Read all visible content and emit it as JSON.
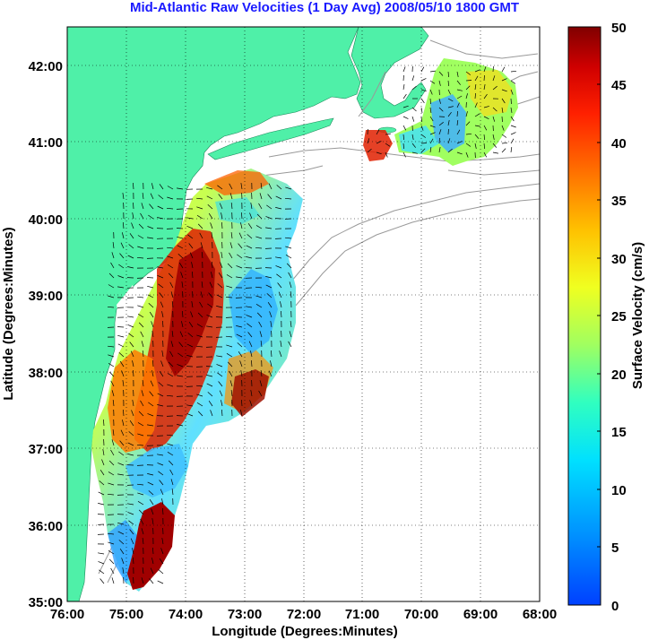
{
  "title": "Mid-Atlantic Raw Velocities (1 Day Avg) 2008/05/10 1800 GMT",
  "x_axis": {
    "label": "Longitude (Degrees:Minutes)",
    "ticks": [
      "76:00",
      "75:00",
      "74:00",
      "73:00",
      "72:00",
      "71:00",
      "70:00",
      "69:00",
      "68:00"
    ]
  },
  "y_axis": {
    "label": "Latitude (Degrees:Minutes)",
    "ticks": [
      "42:00",
      "41:00",
      "40:00",
      "39:00",
      "38:00",
      "37:00",
      "36:00",
      "35:00"
    ]
  },
  "colorbar": {
    "label": "Surface Velocity (cm/s)",
    "ticks": [
      "50",
      "45",
      "40",
      "35",
      "30",
      "25",
      "20",
      "15",
      "10",
      "5",
      "0"
    ],
    "range": [
      0,
      50
    ],
    "colormap": "jet"
  },
  "colors": {
    "land": "#4ff0a8",
    "title": "#1a1aff",
    "bathymetry": "#999999",
    "grid": "#000000"
  },
  "chart_data": {
    "type": "heatmap",
    "title": "Mid-Atlantic Raw Velocities (1 Day Avg) 2008/05/10 1800 GMT",
    "xlabel": "Longitude (Degrees:Minutes)",
    "ylabel": "Latitude (Degrees:Minutes)",
    "xlim": [
      -76,
      -68
    ],
    "ylim": [
      35,
      42.5
    ],
    "colorbar_label": "Surface Velocity (cm/s)",
    "colorbar_range": [
      0,
      50
    ],
    "grid": true
  }
}
